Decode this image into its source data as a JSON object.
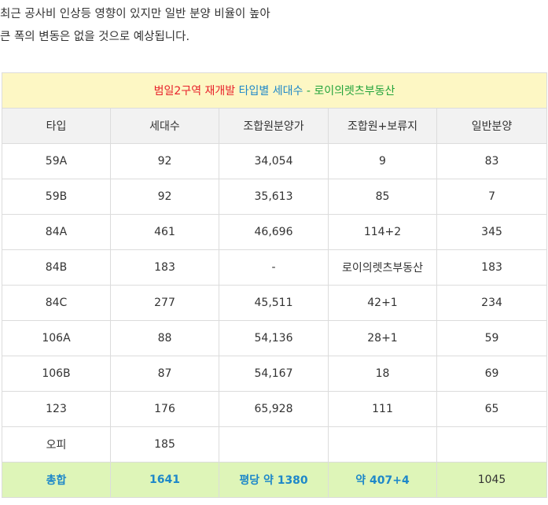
{
  "intro": {
    "line1": "최근 공사비 인상등 영향이 있지만 일반 분양 비율이 높아",
    "line2": "큰 폭의 변동은 없을 것으로 예상됩니다."
  },
  "table": {
    "title": {
      "part1": "범일2구역 재개발",
      "part2": "타입별 세대수",
      "part3": "- 로이의렛츠부동산"
    },
    "headers": [
      "타입",
      "세대수",
      "조합원분양가",
      "조합원+보류지",
      "일반분양"
    ],
    "rows": [
      [
        "59A",
        "92",
        "34,054",
        "9",
        "83"
      ],
      [
        "59B",
        "92",
        "35,613",
        "85",
        "7"
      ],
      [
        "84A",
        "461",
        "46,696",
        "114+2",
        "345"
      ],
      [
        "84B",
        "183",
        "-",
        "로이의렛츠부동산",
        "183"
      ],
      [
        "84C",
        "277",
        "45,511",
        "42+1",
        "234"
      ],
      [
        "106A",
        "88",
        "54,136",
        "28+1",
        "59"
      ],
      [
        "106B",
        "87",
        "54,167",
        "18",
        "69"
      ],
      [
        "123",
        "176",
        "65,928",
        "111",
        "65"
      ],
      [
        "오피",
        "185",
        "",
        "",
        ""
      ]
    ],
    "total": [
      "총합",
      "1641",
      "평당 약 1380",
      "약 407+4",
      "1045"
    ]
  },
  "colors": {
    "title_red": "#e8212a",
    "accent_blue": "#1e88c9",
    "title_green": "#22a33a",
    "title_bg": "#fdf7c4",
    "header_bg": "#f2f2f2",
    "total_bg": "#def5b8"
  }
}
